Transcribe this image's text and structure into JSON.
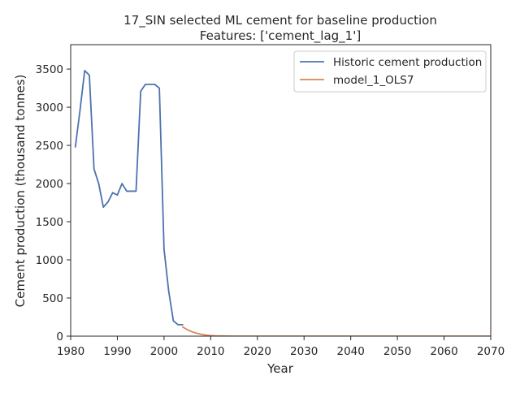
{
  "chart_data": {
    "type": "line",
    "title": "17_SIN selected ML cement for baseline production",
    "subtitle": "Features: ['cement_lag_1']",
    "xlabel": "Year",
    "ylabel": "Cement production (thousand tonnes)",
    "xlim": [
      1980,
      2070
    ],
    "ylim": [
      0,
      3820
    ],
    "x_ticks": [
      1980,
      1990,
      2000,
      2010,
      2020,
      2030,
      2040,
      2050,
      2060,
      2070
    ],
    "y_ticks": [
      0,
      500,
      1000,
      1500,
      2000,
      2500,
      3000,
      3500
    ],
    "grid": false,
    "legend_position": "top-right",
    "series": [
      {
        "name": "Historic cement production",
        "color": "#4c72b0",
        "x": [
          1981,
          1982,
          1983,
          1984,
          1985,
          1986,
          1987,
          1988,
          1989,
          1990,
          1991,
          1992,
          1993,
          1994,
          1995,
          1996,
          1997,
          1998,
          1999,
          2000,
          2001,
          2002,
          2003,
          2004
        ],
        "y": [
          2480,
          2960,
          3480,
          3420,
          2190,
          2000,
          1690,
          1760,
          1880,
          1850,
          2000,
          1900,
          1900,
          1900,
          3210,
          3300,
          3300,
          3300,
          3250,
          1140,
          590,
          200,
          150,
          150
        ]
      },
      {
        "name": "model_1_OLS7",
        "color": "#dd8452",
        "x": [
          2004,
          2005,
          2006,
          2007,
          2008,
          2009,
          2010,
          2011,
          2012,
          2013,
          2015,
          2020,
          2030,
          2040,
          2050,
          2060,
          2070
        ],
        "y": [
          120,
          85,
          58,
          38,
          24,
          14,
          8,
          4,
          2,
          1,
          0,
          0,
          0,
          0,
          0,
          0,
          0
        ]
      }
    ]
  }
}
